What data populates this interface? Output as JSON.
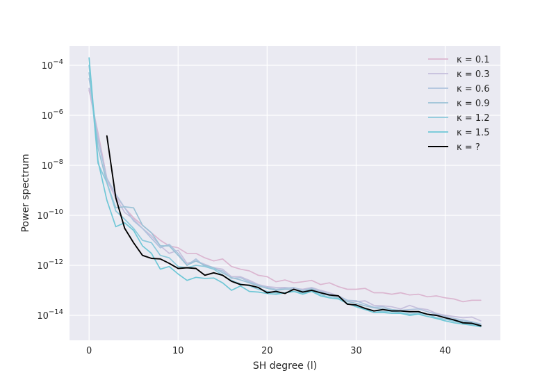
{
  "chart_data": {
    "type": "line",
    "title": "",
    "xlabel": "SH degree (l)",
    "ylabel": "Power spectrum",
    "yscale": "log",
    "xlim": [
      -2.2,
      46.2
    ],
    "ylim": [
      1e-15,
      0.0006
    ],
    "x_ticks": [
      0,
      10,
      20,
      30,
      40
    ],
    "y_ticks": [
      1e-14,
      1e-12,
      1e-10,
      1e-08,
      1e-06,
      0.0001
    ],
    "y_tick_labels": [
      {
        "base": "10",
        "exp": "−14"
      },
      {
        "base": "10",
        "exp": "−12"
      },
      {
        "base": "10",
        "exp": "−10"
      },
      {
        "base": "10",
        "exp": "−8"
      },
      {
        "base": "10",
        "exp": "−6"
      },
      {
        "base": "10",
        "exp": "−4"
      }
    ],
    "grid": true,
    "background": "#eaeaf2",
    "legend_position": "top-right",
    "series": [
      {
        "name": "κ = 0.1",
        "color": "#dbb6d0",
        "x_start": 0,
        "values": [
          1e-05,
          2e-07,
          3e-09,
          6e-10,
          2e-10,
          8e-11,
          4e-11,
          2e-11,
          1e-11,
          6e-12,
          5e-12,
          3e-12,
          3e-12,
          2e-12,
          1.5e-12,
          1.8e-12,
          9e-13,
          7e-13,
          6e-13,
          4e-13,
          3.5e-13,
          2.2e-13,
          2.6e-13,
          2e-13,
          2.2e-13,
          2.5e-13,
          1.7e-13,
          2e-13,
          1.4e-13,
          1.1e-13,
          1.1e-13,
          1.2e-13,
          8e-14,
          8e-14,
          7e-14,
          8e-14,
          6.5e-14,
          7e-14,
          5.5e-14,
          6e-14,
          5e-14,
          4.5e-14,
          3.5e-14,
          4e-14,
          4e-14
        ]
      },
      {
        "name": "κ = 0.3",
        "color": "#c6bfdc",
        "x_start": 0,
        "values": [
          1.2e-05,
          1.5e-07,
          2.5e-09,
          5e-10,
          1.3e-10,
          7e-11,
          3e-11,
          1.5e-11,
          6e-12,
          3e-12,
          4e-12,
          1.2e-12,
          1.5e-12,
          1.1e-12,
          8e-13,
          7e-13,
          3.5e-13,
          3.5e-13,
          2.5e-13,
          1.7e-13,
          1.4e-13,
          1.3e-13,
          1.3e-13,
          1.2e-13,
          1.1e-13,
          1.3e-13,
          1e-13,
          8e-14,
          6e-14,
          4e-14,
          3.5e-14,
          3.8e-14,
          2.5e-14,
          2.4e-14,
          2.2e-14,
          1.8e-14,
          2.5e-14,
          1.9e-14,
          1.7e-14,
          1.2e-14,
          1e-14,
          9e-15,
          8e-15,
          8.5e-15,
          6e-15
        ]
      },
      {
        "name": "κ = 0.6",
        "color": "#afc3dd",
        "x_start": 0,
        "values": [
          3e-05,
          1e-07,
          3e-09,
          7e-10,
          2e-10,
          6e-11,
          3e-11,
          1.2e-11,
          5e-12,
          7e-12,
          3e-12,
          1e-12,
          1.8e-12,
          9e-13,
          7e-13,
          6e-13,
          3e-13,
          3.2e-13,
          2.2e-13,
          1.6e-13,
          1.3e-13,
          1.1e-13,
          1.2e-13,
          1.3e-13,
          1e-13,
          1.2e-13,
          9e-14,
          7e-14,
          6e-14,
          4e-14,
          3.8e-14,
          2.8e-14,
          2.1e-14,
          2.2e-14,
          1.7e-14,
          1.6e-14,
          1.7e-14,
          1.8e-14,
          1.4e-14,
          1.1e-14,
          9e-15,
          7.5e-15,
          6.5e-15,
          5.5e-15,
          4.5e-15
        ]
      },
      {
        "name": "κ = 0.9",
        "color": "#9bc2d6",
        "x_start": 0,
        "values": [
          5e-05,
          5e-08,
          2e-09,
          2e-10,
          2.2e-10,
          2e-10,
          4e-11,
          2e-11,
          6e-12,
          6e-12,
          2.5e-12,
          1e-12,
          1.5e-12,
          1e-12,
          8e-13,
          5e-13,
          3.2e-13,
          2.6e-13,
          2e-13,
          1.5e-13,
          1.2e-13,
          1e-13,
          1.1e-13,
          1.1e-13,
          9e-14,
          1.1e-13,
          8e-14,
          6e-14,
          5e-14,
          3.6e-14,
          3e-14,
          2.4e-14,
          2e-14,
          1.8e-14,
          1.7e-14,
          1.5e-14,
          1.3e-14,
          1.4e-14,
          1.1e-14,
          1e-14,
          8e-15,
          6.5e-15,
          5.8e-15,
          5e-15,
          4.2e-15
        ]
      },
      {
        "name": "κ = 1.2",
        "color": "#8bc9db",
        "x_start": 0,
        "values": [
          0.0001,
          1.2e-08,
          2e-09,
          1.5e-10,
          7e-11,
          3e-11,
          1e-11,
          8e-12,
          2.5e-12,
          2e-12,
          9e-13,
          8e-13,
          1e-12,
          9e-13,
          7e-13,
          4e-13,
          2.5e-13,
          1.8e-13,
          1.5e-13,
          1.1e-13,
          9e-14,
          8e-14,
          8e-14,
          9e-14,
          8e-14,
          9e-14,
          7e-14,
          5e-14,
          4.5e-14,
          3e-14,
          2.4e-14,
          1.9e-14,
          1.5e-14,
          1.4e-14,
          1.4e-14,
          1.3e-14,
          1.1e-14,
          1.2e-14,
          1.1e-14,
          8e-15,
          7e-15,
          5.8e-15,
          5e-15,
          4.5e-15,
          3.8e-15
        ]
      },
      {
        "name": "κ = 1.5",
        "color": "#6fc7d6",
        "x_start": 0,
        "values": [
          0.0002,
          1.5e-08,
          4e-10,
          3.5e-11,
          5e-11,
          2.5e-11,
          6e-12,
          3e-12,
          7e-13,
          9e-13,
          4.5e-13,
          2.5e-13,
          3.3e-13,
          3e-13,
          3.1e-13,
          2e-13,
          1e-13,
          1.5e-13,
          9e-14,
          8.5e-14,
          7.5e-14,
          7e-14,
          8e-14,
          9e-14,
          7e-14,
          9e-14,
          6e-14,
          5e-14,
          4.6e-14,
          3e-14,
          2.2e-14,
          1.7e-14,
          1.3e-14,
          1.3e-14,
          1.2e-14,
          1.2e-14,
          1e-14,
          1.1e-14,
          9e-15,
          7.5e-15,
          6e-15,
          5e-15,
          4.5e-15,
          4e-15,
          3.5e-15
        ]
      },
      {
        "name": "κ = ?",
        "color": "#000000",
        "x_start": 2,
        "values": [
          1.5e-07,
          5e-10,
          3e-11,
          8e-12,
          2.5e-12,
          1.9e-12,
          1.8e-12,
          1.2e-12,
          7.5e-13,
          8e-13,
          7.5e-13,
          4e-13,
          5e-13,
          4e-13,
          2.3e-13,
          1.7e-13,
          1.6e-13,
          1.3e-13,
          8e-14,
          9e-14,
          7.5e-14,
          1.1e-13,
          8.5e-14,
          1e-13,
          8e-14,
          6.5e-14,
          6e-14,
          2.8e-14,
          2.6e-14,
          1.9e-14,
          1.5e-14,
          1.7e-14,
          1.5e-14,
          1.5e-14,
          1.4e-14,
          1.4e-14,
          1.1e-14,
          1e-14,
          8e-15,
          6.5e-15,
          5e-15,
          4.8e-15,
          3.8e-15
        ]
      }
    ]
  }
}
